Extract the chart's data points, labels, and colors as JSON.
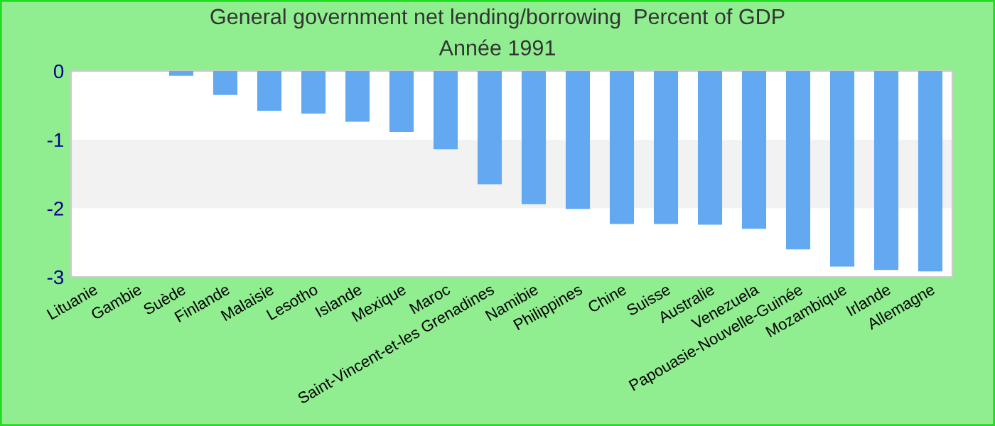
{
  "chart_data": {
    "type": "bar",
    "title": "General government net lending/borrowing  Percent of GDP",
    "subtitle": "Année 1991",
    "categories": [
      "Lituanie",
      "Gambie",
      "Suède",
      "Finlande",
      "Malaisie",
      "Lesotho",
      "Islande",
      "Mexique",
      "Maroc",
      "Saint-Vincent-et-les Grenadines",
      "Namibie",
      "Philippines",
      "Chine",
      "Suisse",
      "Australie",
      "Venezuela",
      "Papouasie-Nouvelle-Guinée",
      "Mozambique",
      "Irlande",
      "Allemagne"
    ],
    "values": [
      0,
      0,
      -0.07,
      -0.35,
      -0.58,
      -0.62,
      -0.74,
      -0.89,
      -1.14,
      -1.65,
      -1.94,
      -2.01,
      -2.23,
      -2.23,
      -2.24,
      -2.3,
      -2.6,
      -2.85,
      -2.9,
      -2.92
    ],
    "color": "#63a9f2",
    "ylim": [
      -3,
      0
    ],
    "yticks": [
      0,
      -1,
      -2,
      -3
    ],
    "bands": [
      {
        "axis": "y",
        "from": -2,
        "to": -1,
        "color": "#f2f2f2"
      }
    ],
    "grid": false,
    "legend": false
  }
}
